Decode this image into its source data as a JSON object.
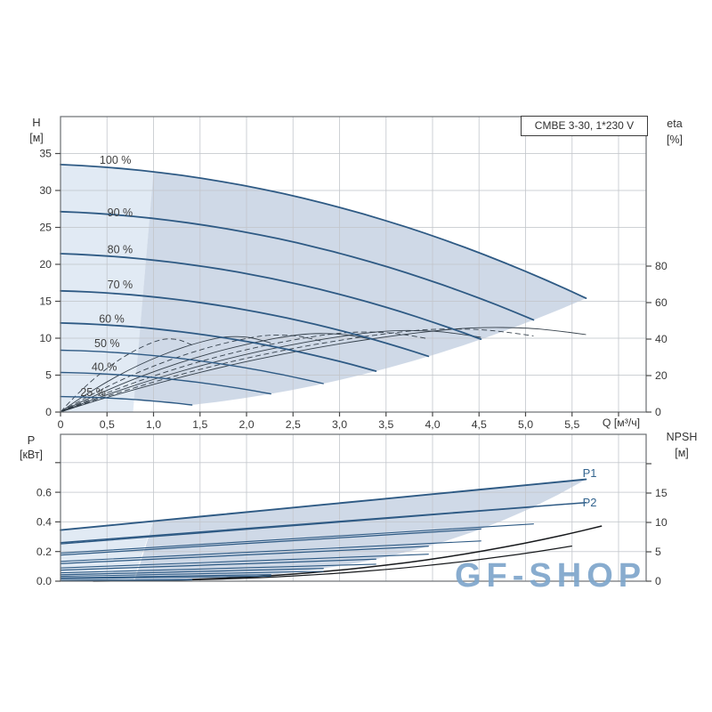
{
  "page": {
    "background": "#ffffff"
  },
  "colors": {
    "accent_blue": "#2e5a84",
    "thin_curve": "#27333e",
    "npsh_black": "#17191c",
    "region_light": "#dce6f2",
    "region_dark": "#c7d2e3",
    "grid": "#c3c6cb",
    "frame": "#6a6e72",
    "tick": "#4a4a4a",
    "text": "#383838",
    "label_blue": "#33648f",
    "watermark": "#7ea6cb"
  },
  "watermark": {
    "text": "GF-SHOP"
  },
  "chart_data": [
    {
      "type": "line",
      "name": "head-flow-chart",
      "title": "CMBE 3-30, 1*230 V",
      "xlabel": "Q [м³/ч]",
      "axis_left": {
        "name": "H",
        "unit": "[м]"
      },
      "axis_right": {
        "name": "eta",
        "unit": "[%]"
      },
      "xlim": [
        0,
        6.3
      ],
      "ylim_left": [
        0,
        40
      ],
      "ylim_right": [
        0,
        162
      ],
      "grid": true,
      "x_ticks": {
        "values": [
          0,
          0.5,
          1,
          1.5,
          2,
          2.5,
          3,
          3.5,
          4,
          4.5,
          5,
          5.5
        ],
        "labels": [
          "0",
          "0,5",
          "1,0",
          "1,5",
          "2,0",
          "2,5",
          "3,0",
          "3,5",
          "4,0",
          "4,5",
          "5,0",
          "5,5"
        ]
      },
      "y_ticks_left": {
        "values": [
          0,
          5,
          10,
          15,
          20,
          25,
          30,
          35
        ],
        "labels": [
          "0",
          "5",
          "10",
          "15",
          "20",
          "25",
          "30",
          "35"
        ]
      },
      "y_ticks_right": {
        "values": [
          0,
          20,
          40,
          60,
          80
        ],
        "labels": [
          "0",
          "20",
          "40",
          "60",
          "80"
        ]
      },
      "model": {
        "h0": 33.5,
        "b": 0.49,
        "a": 0.48
      },
      "speed_curves": [
        {
          "label": "100 %",
          "speed": 1.0,
          "h_start": 33.5,
          "q_end": 5.65,
          "h_end": 15.4,
          "label_q": 0.59,
          "label_h": 34.1
        },
        {
          "label": "90 %",
          "speed": 0.9,
          "h_start": 27.1,
          "q_end": 5.09,
          "h_end": 12.5,
          "label_q": 0.64,
          "label_h": 27.0
        },
        {
          "label": "80 %",
          "speed": 0.8,
          "h_start": 21.4,
          "q_end": 4.52,
          "h_end": 9.9,
          "label_q": 0.64,
          "label_h": 22.0
        },
        {
          "label": "70 %",
          "speed": 0.7,
          "h_start": 16.4,
          "q_end": 3.96,
          "h_end": 7.5,
          "label_q": 0.64,
          "label_h": 17.2
        },
        {
          "label": "60 %",
          "speed": 0.6,
          "h_start": 12.1,
          "q_end": 3.39,
          "h_end": 5.5,
          "label_q": 0.55,
          "label_h": 12.6
        },
        {
          "label": "50 %",
          "speed": 0.5,
          "h_start": 8.4,
          "q_end": 2.83,
          "h_end": 3.9,
          "label_q": 0.5,
          "label_h": 9.3
        },
        {
          "label": "40 %",
          "speed": 0.4,
          "h_start": 5.4,
          "q_end": 2.26,
          "h_end": 2.5,
          "label_q": 0.47,
          "label_h": 6.1
        },
        {
          "label": "25 %",
          "speed": 0.25,
          "h_start": 2.1,
          "q_end": 1.41,
          "h_end": 1.0,
          "label_q": 0.35,
          "label_h": 2.65
        }
      ],
      "envelope": {
        "split_q": 1.0,
        "foot_q": 0.78,
        "max_flow_k": 0.482,
        "min_speed": 0.25
      },
      "eta": {
        "speeds": [
          1.0,
          0.9,
          0.8,
          0.7,
          0.6,
          0.5,
          0.4,
          0.25
        ],
        "base_points": [
          [
            0,
            0
          ],
          [
            0.3,
            5
          ],
          [
            0.7,
            11
          ],
          [
            1.2,
            18
          ],
          [
            1.8,
            25.5
          ],
          [
            2.4,
            32
          ],
          [
            3,
            37.5
          ],
          [
            3.6,
            42
          ],
          [
            4.1,
            45
          ],
          [
            4.5,
            46.5
          ],
          [
            5,
            46.2
          ],
          [
            5.3,
            44.8
          ],
          [
            5.65,
            42.5
          ]
        ],
        "peak_eta_100": 46.5
      }
    },
    {
      "type": "line",
      "name": "power-npsh-chart",
      "axis_left": {
        "name": "P",
        "unit": "[кВт]"
      },
      "axis_right": {
        "name": "NPSH",
        "unit": "[м]"
      },
      "ylim_left": [
        0,
        0.99
      ],
      "ylim_right": [
        0,
        25
      ],
      "grid": true,
      "y_ticks_left": {
        "values": [
          0,
          0.2,
          0.4,
          0.6
        ],
        "labels": [
          "0.0",
          "0.2",
          "0.4",
          "0.6"
        ],
        "all_tick_values": [
          0,
          0.2,
          0.4,
          0.6,
          0.8
        ]
      },
      "y_ticks_right": {
        "values": [
          0,
          5,
          10,
          15
        ],
        "labels": [
          "0",
          "5",
          "10",
          "15"
        ],
        "all_tick_values": [
          0,
          5,
          10,
          15,
          20
        ]
      },
      "speeds": [
        1.0,
        0.9,
        0.8,
        0.7,
        0.6,
        0.5,
        0.4,
        0.25
      ],
      "p1_model": {
        "p0": 0.345,
        "slope": 0.0605
      },
      "p2_model": {
        "p0": 0.26,
        "slope": 0.0478
      },
      "p1_curve": {
        "label": "P1",
        "p_start": 0.345,
        "q_end": 5.65,
        "p_end": 0.69,
        "label_q": 5.69,
        "label_p": 0.727
      },
      "p2_curve": {
        "label": "P2",
        "p_start": 0.26,
        "q_end": 5.65,
        "p_end": 0.53,
        "label_q": 5.69,
        "label_p": 0.529
      },
      "npsh_curves": [
        {
          "c": 0.13,
          "k": 2.43,
          "q_end": 5.82,
          "npsh_end": 9.4
        },
        {
          "c": 0.095,
          "k": 2.43,
          "q_end": 5.5,
          "npsh_end": 6.0
        }
      ]
    }
  ]
}
